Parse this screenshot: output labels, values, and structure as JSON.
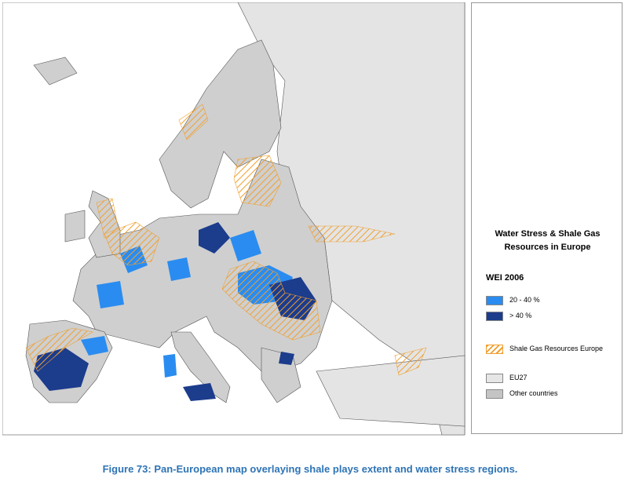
{
  "legend": {
    "title": "Water Stress & Shale Gas Resources in Europe",
    "subtitle": "WEI 2006",
    "items": [
      {
        "label": "20 - 40 %"
      },
      {
        "label": "> 40 %"
      },
      {
        "label": "Shale Gas Resources Europe"
      },
      {
        "label": "EU27"
      },
      {
        "label": "Other countries"
      }
    ]
  },
  "caption": "Figure 73: Pan-European map overlaying shale plays extent and water stress regions."
}
